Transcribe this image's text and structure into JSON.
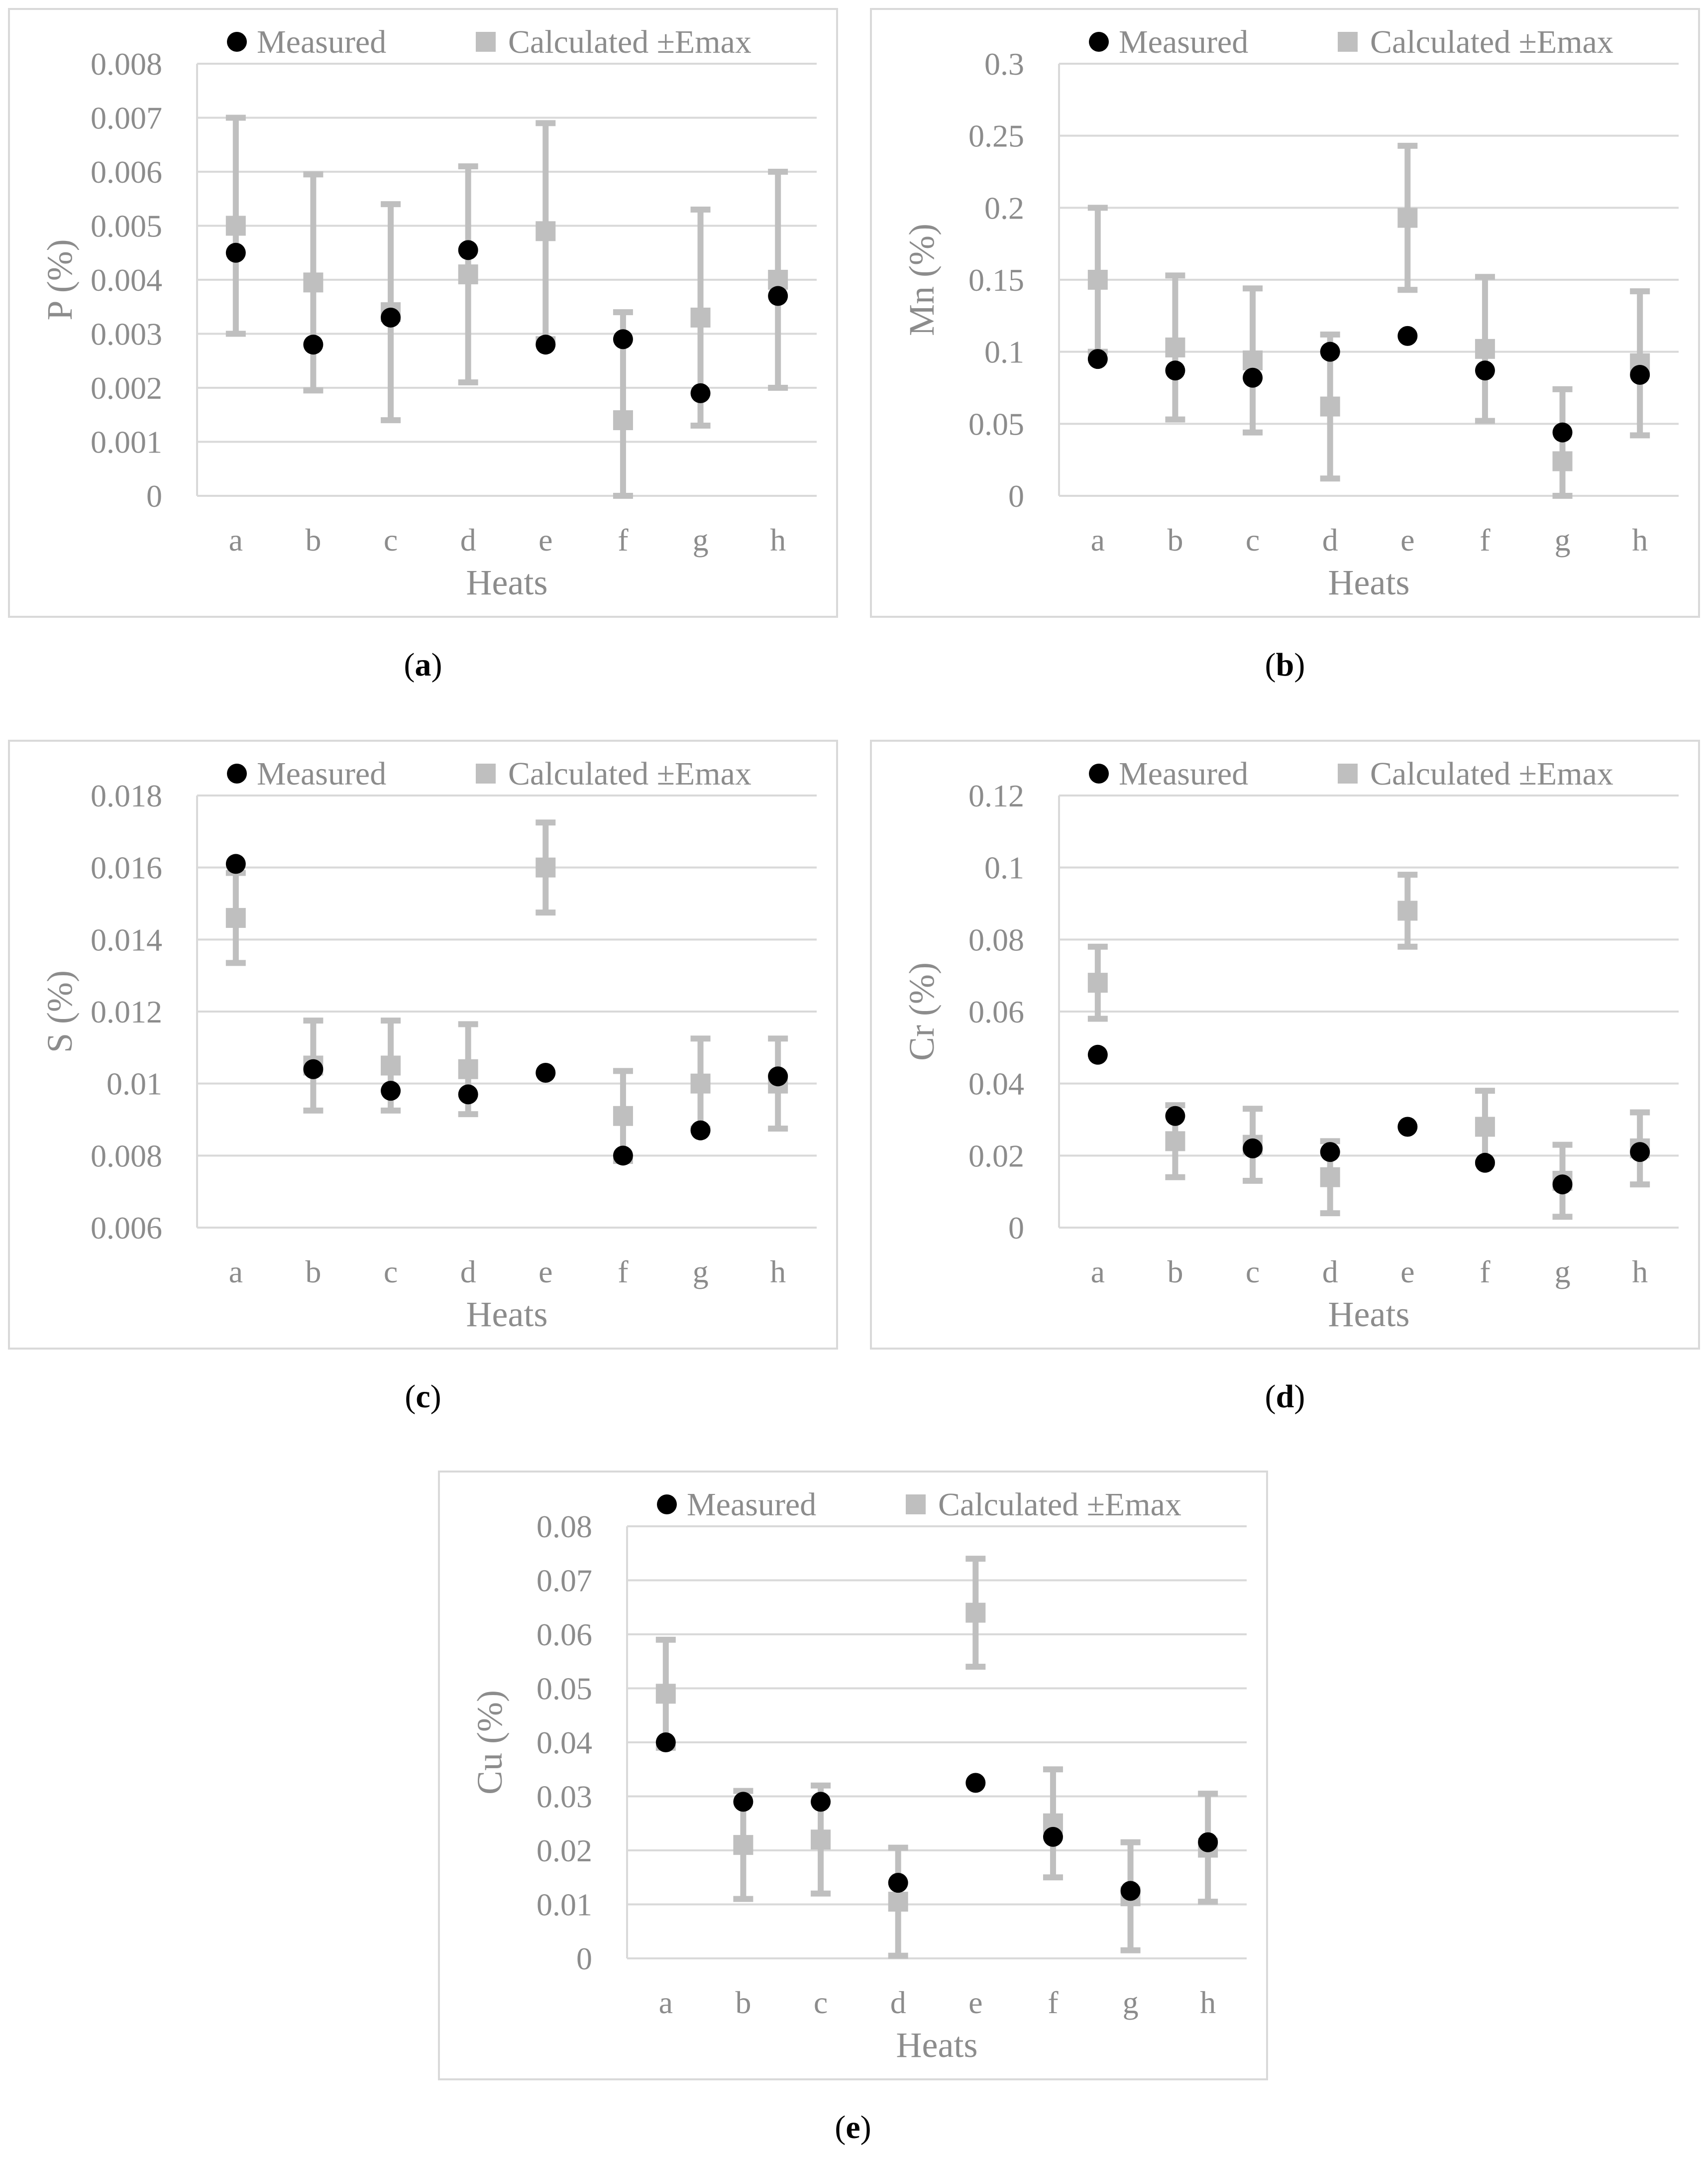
{
  "legend": {
    "measured": "Measured",
    "calculated": "Calculated ±Emax"
  },
  "colors": {
    "measured": "#000000",
    "calculated": "#bfbfbf",
    "grid": "#d9d9d9",
    "text": "#8c8c8c",
    "frame": "#d9d9d9"
  },
  "captions": [
    "a",
    "b",
    "c",
    "d",
    "e"
  ],
  "chart_data": [
    {
      "type": "scatter",
      "panel": "a",
      "title": "",
      "xlabel": "Heats",
      "ylabel": "P (%)",
      "categories": [
        "a",
        "b",
        "c",
        "d",
        "e",
        "f",
        "g",
        "h"
      ],
      "ylim": [
        0,
        0.008
      ],
      "yticks": [
        0,
        0.001,
        0.002,
        0.003,
        0.004,
        0.005,
        0.006,
        0.007,
        0.008
      ],
      "ytick_labels": [
        "0",
        "0.001",
        "0.002",
        "0.003",
        "0.004",
        "0.005",
        "0.006",
        "0.007",
        "0.008"
      ],
      "series": [
        {
          "name": "Measured",
          "values": [
            0.0045,
            0.0028,
            0.0033,
            0.00455,
            0.0028,
            0.0029,
            0.0019,
            0.0037
          ]
        },
        {
          "name": "Calculated ±Emax",
          "values": [
            0.005,
            0.00395,
            0.0034,
            0.0041,
            0.0049,
            0.0014,
            0.0033,
            0.004
          ],
          "error": [
            0.002,
            0.002,
            0.002,
            0.002,
            0.002,
            0.002,
            0.002,
            0.002
          ]
        }
      ],
      "legend_position": "top-center",
      "grid": true
    },
    {
      "type": "scatter",
      "panel": "b",
      "title": "",
      "xlabel": "Heats",
      "ylabel": "Mn (%)",
      "categories": [
        "a",
        "b",
        "c",
        "d",
        "e",
        "f",
        "g",
        "h"
      ],
      "ylim": [
        0,
        0.3
      ],
      "yticks": [
        0,
        0.05,
        0.1,
        0.15,
        0.2,
        0.25,
        0.3
      ],
      "ytick_labels": [
        "0",
        "0.05",
        "0.1",
        "0.15",
        "0.2",
        "0.25",
        "0.3"
      ],
      "series": [
        {
          "name": "Measured",
          "values": [
            0.095,
            0.087,
            0.082,
            0.1,
            0.111,
            0.087,
            0.044,
            0.084
          ]
        },
        {
          "name": "Calculated ±Emax",
          "values": [
            0.15,
            0.103,
            0.094,
            0.062,
            0.193,
            0.102,
            0.024,
            0.092
          ],
          "error": [
            0.05,
            0.05,
            0.05,
            0.05,
            0.05,
            0.05,
            0.05,
            0.05
          ]
        }
      ],
      "legend_position": "top-center",
      "grid": true
    },
    {
      "type": "scatter",
      "panel": "c",
      "title": "",
      "xlabel": "Heats",
      "ylabel": "S (%)",
      "categories": [
        "a",
        "b",
        "c",
        "d",
        "e",
        "f",
        "g",
        "h"
      ],
      "ylim": [
        0.006,
        0.018
      ],
      "yticks": [
        0.006,
        0.008,
        0.01,
        0.012,
        0.014,
        0.016,
        0.018
      ],
      "ytick_labels": [
        "0.006",
        "0.008",
        "0.01",
        "0.012",
        "0.014",
        "0.016",
        "0.018"
      ],
      "series": [
        {
          "name": "Measured",
          "values": [
            0.0161,
            0.0104,
            0.0098,
            0.0097,
            0.0103,
            0.008,
            0.0087,
            0.0102
          ]
        },
        {
          "name": "Calculated ±Emax",
          "values": [
            0.0146,
            0.0105,
            0.0105,
            0.0104,
            0.016,
            0.0091,
            0.01,
            0.01
          ],
          "error": [
            0.00125,
            0.00125,
            0.00125,
            0.00125,
            0.00125,
            0.00125,
            0.00125,
            0.00125
          ]
        }
      ],
      "legend_position": "top-center",
      "grid": true
    },
    {
      "type": "scatter",
      "panel": "d",
      "title": "",
      "xlabel": "Heats",
      "ylabel": "Cr (%)",
      "categories": [
        "a",
        "b",
        "c",
        "d",
        "e",
        "f",
        "g",
        "h"
      ],
      "ylim": [
        0,
        0.12
      ],
      "yticks": [
        0,
        0.02,
        0.04,
        0.06,
        0.08,
        0.1,
        0.12
      ],
      "ytick_labels": [
        "0",
        "0.02",
        "0.04",
        "0.06",
        "0.08",
        "0.1",
        "0.12"
      ],
      "series": [
        {
          "name": "Measured",
          "values": [
            0.048,
            0.031,
            0.022,
            0.021,
            0.028,
            0.018,
            0.012,
            0.021
          ]
        },
        {
          "name": "Calculated ±Emax",
          "values": [
            0.068,
            0.024,
            0.023,
            0.014,
            0.088,
            0.028,
            0.013,
            0.022
          ],
          "error": [
            0.01,
            0.01,
            0.01,
            0.01,
            0.01,
            0.01,
            0.01,
            0.01
          ]
        }
      ],
      "legend_position": "top-center",
      "grid": true
    },
    {
      "type": "scatter",
      "panel": "e",
      "title": "",
      "xlabel": "Heats",
      "ylabel": "Cu (%)",
      "categories": [
        "a",
        "b",
        "c",
        "d",
        "e",
        "f",
        "g",
        "h"
      ],
      "ylim": [
        0,
        0.08
      ],
      "yticks": [
        0,
        0.01,
        0.02,
        0.03,
        0.04,
        0.05,
        0.06,
        0.07,
        0.08
      ],
      "ytick_labels": [
        "0",
        "0.01",
        "0.02",
        "0.03",
        "0.04",
        "0.05",
        "0.06",
        "0.07",
        "0.08"
      ],
      "series": [
        {
          "name": "Measured",
          "values": [
            0.04,
            0.029,
            0.029,
            0.014,
            0.0325,
            0.0225,
            0.0125,
            0.0215
          ]
        },
        {
          "name": "Calculated ±Emax",
          "values": [
            0.049,
            0.021,
            0.022,
            0.0105,
            0.064,
            0.025,
            0.0115,
            0.0205
          ],
          "error": [
            0.01,
            0.01,
            0.01,
            0.01,
            0.01,
            0.01,
            0.01,
            0.01
          ]
        }
      ],
      "legend_position": "top-center",
      "grid": true
    }
  ]
}
